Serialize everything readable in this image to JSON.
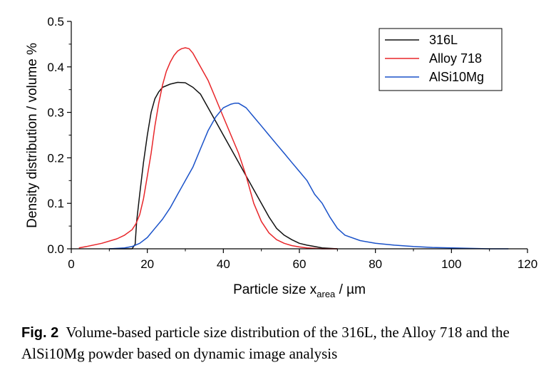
{
  "chart_data": {
    "type": "line",
    "xlabel_main": "Particle size x",
    "xlabel_sub": "area",
    "xlabel_unit": " / µm",
    "ylabel": "Density distribution / volume %",
    "xlim": [
      0,
      120
    ],
    "ylim": [
      0,
      0.5
    ],
    "x_ticks": [
      "0",
      "20",
      "40",
      "60",
      "80",
      "100",
      "120"
    ],
    "y_ticks": [
      "0.0",
      "0.1",
      "0.2",
      "0.3",
      "0.4",
      "0.5"
    ],
    "grid": false,
    "legend_position": "top-right",
    "series": [
      {
        "name": "316L",
        "color": "#111111",
        "x": [
          10,
          16,
          16.8,
          17.2,
          18,
          19,
          20,
          21,
          22,
          23,
          24,
          26,
          28,
          30,
          32,
          34,
          36,
          38,
          40,
          42,
          44,
          46,
          48,
          50,
          52,
          54,
          56,
          58,
          60,
          62,
          64,
          66,
          68,
          70
        ],
        "y": [
          0.0,
          0.0,
          0.01,
          0.06,
          0.12,
          0.19,
          0.25,
          0.3,
          0.33,
          0.345,
          0.355,
          0.362,
          0.366,
          0.365,
          0.355,
          0.34,
          0.31,
          0.28,
          0.25,
          0.22,
          0.19,
          0.16,
          0.13,
          0.1,
          0.07,
          0.045,
          0.03,
          0.02,
          0.012,
          0.008,
          0.005,
          0.002,
          0.001,
          0.0
        ]
      },
      {
        "name": "Alloy 718",
        "color": "#e8262a",
        "x": [
          2,
          4,
          8,
          12,
          14,
          16,
          17,
          18,
          19,
          20,
          21,
          22,
          23,
          24,
          25,
          26,
          27,
          28,
          29,
          30,
          31,
          32,
          34,
          36,
          38,
          40,
          42,
          44,
          46,
          48,
          50,
          52,
          54,
          56,
          58,
          60,
          62,
          64,
          66,
          70
        ],
        "y": [
          0.002,
          0.005,
          0.012,
          0.022,
          0.03,
          0.042,
          0.055,
          0.075,
          0.11,
          0.16,
          0.21,
          0.27,
          0.32,
          0.36,
          0.39,
          0.41,
          0.425,
          0.435,
          0.44,
          0.442,
          0.44,
          0.43,
          0.4,
          0.37,
          0.33,
          0.29,
          0.25,
          0.21,
          0.16,
          0.1,
          0.06,
          0.035,
          0.02,
          0.012,
          0.007,
          0.004,
          0.002,
          0.001,
          0.0,
          0.0
        ]
      },
      {
        "name": "AlSi10Mg",
        "color": "#1a52c9",
        "x": [
          10,
          14,
          16,
          18,
          20,
          22,
          24,
          26,
          28,
          30,
          32,
          34,
          36,
          38,
          40,
          42,
          43,
          44,
          46,
          48,
          50,
          52,
          54,
          56,
          58,
          60,
          62,
          64,
          66,
          68,
          70,
          72,
          76,
          80,
          85,
          90,
          95,
          100,
          105,
          110,
          115
        ],
        "y": [
          0.0,
          0.002,
          0.005,
          0.012,
          0.025,
          0.045,
          0.065,
          0.09,
          0.12,
          0.15,
          0.18,
          0.22,
          0.26,
          0.29,
          0.31,
          0.318,
          0.32,
          0.32,
          0.31,
          0.29,
          0.27,
          0.25,
          0.23,
          0.21,
          0.19,
          0.17,
          0.15,
          0.12,
          0.1,
          0.07,
          0.045,
          0.03,
          0.018,
          0.012,
          0.008,
          0.005,
          0.003,
          0.002,
          0.001,
          0.0,
          0.0
        ]
      }
    ]
  },
  "caption": {
    "label": "Fig. 2",
    "text": "Volume-based particle size distribution of the 316L, the Alloy 718 and the AlSi10Mg powder based on dynamic image analysis"
  }
}
